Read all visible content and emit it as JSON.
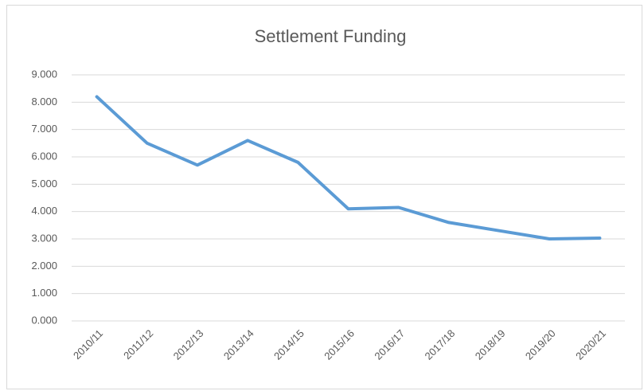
{
  "chart_data": {
    "type": "line",
    "title": "Settlement Funding",
    "categories": [
      "2010/11",
      "2011/12",
      "2012/13",
      "2013/14",
      "2014/15",
      "2015/16",
      "2016/17",
      "2017/18",
      "2018/19",
      "2019/20",
      "2020/21"
    ],
    "series": [
      {
        "name": "Settlement Funding",
        "color": "#5b9bd5",
        "values": [
          8.2,
          6.5,
          5.7,
          6.6,
          5.8,
          4.1,
          4.15,
          3.6,
          3.3,
          3.0,
          3.03
        ]
      }
    ],
    "ylim": [
      0,
      9
    ],
    "yticks": [
      {
        "value": 0,
        "label": "0.000"
      },
      {
        "value": 1,
        "label": "1.000"
      },
      {
        "value": 2,
        "label": "2.000"
      },
      {
        "value": 3,
        "label": "3.000"
      },
      {
        "value": 4,
        "label": "4.000"
      },
      {
        "value": 5,
        "label": "5.000"
      },
      {
        "value": 6,
        "label": "6.000"
      },
      {
        "value": 7,
        "label": "7.000"
      },
      {
        "value": 8,
        "label": "8.000"
      },
      {
        "value": 9,
        "label": "9.000"
      }
    ],
    "grid": true
  }
}
